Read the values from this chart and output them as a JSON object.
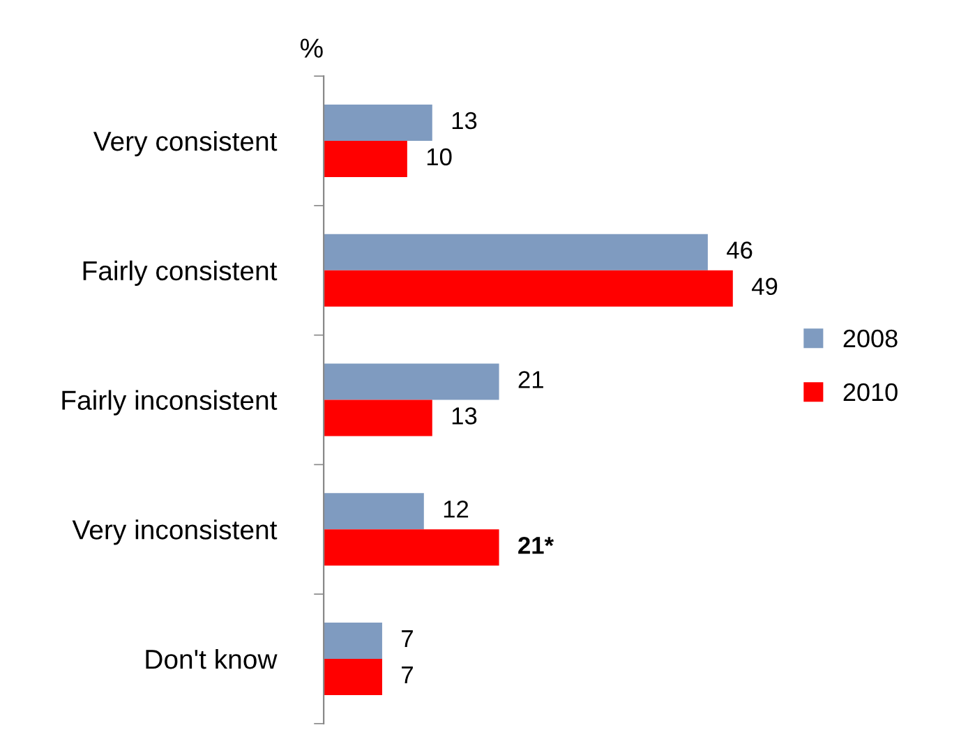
{
  "chart_data": {
    "type": "bar",
    "orientation": "horizontal",
    "ylabel": "%",
    "categories": [
      "Very consistent",
      "Fairly consistent",
      "Fairly inconsistent",
      "Very inconsistent",
      "Don't know"
    ],
    "series": [
      {
        "name": "2008",
        "color": "#7f9bc0",
        "values": [
          13,
          46,
          21,
          12,
          7
        ]
      },
      {
        "name": "2010",
        "color": "#ff0000",
        "values": [
          10,
          49,
          13,
          21,
          7
        ],
        "value_labels": [
          "10",
          "49",
          "13",
          "21*",
          "7"
        ]
      }
    ],
    "data_labels": true,
    "legend": "right",
    "grid": false
  }
}
